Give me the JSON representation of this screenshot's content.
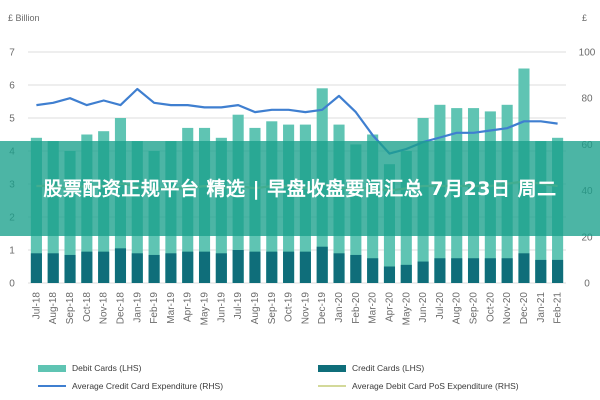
{
  "overlay_title": "股票配资正规平台 精选 | 早盘收盘要闻汇总 7月23日 周二",
  "chart_data": {
    "type": "bar",
    "unit_left": "£ Billion",
    "unit_right": "£",
    "left_axis": {
      "min": 0,
      "max": 7,
      "ticks": [
        0,
        1,
        2,
        3,
        4,
        5,
        6,
        7
      ]
    },
    "right_axis": {
      "min": 0,
      "max": 100,
      "ticks": [
        0,
        20,
        40,
        60,
        80,
        100
      ]
    },
    "categories": [
      "Jul-18",
      "Aug-18",
      "Sep-18",
      "Oct-18",
      "Nov-18",
      "Dec-18",
      "Jan-19",
      "Feb-19",
      "Mar-19",
      "Apr-19",
      "May-19",
      "Jun-19",
      "Jul-19",
      "Aug-19",
      "Sep-19",
      "Oct-19",
      "Nov-19",
      "Dec-19",
      "Jan-20",
      "Feb-20",
      "Mar-20",
      "Apr-20",
      "May-20",
      "Jun-20",
      "Jul-20",
      "Aug-20",
      "Sep-20",
      "Oct-20",
      "Nov-20",
      "Dec-20",
      "Jan-21",
      "Feb-21"
    ],
    "series": [
      {
        "name": "Debit Cards (LHS)",
        "kind": "bar",
        "axis": "left",
        "color": "#5fc4b3",
        "values": [
          4.4,
          4.3,
          4.0,
          4.5,
          4.6,
          5.0,
          4.3,
          4.0,
          4.3,
          4.7,
          4.7,
          4.4,
          5.1,
          4.7,
          4.9,
          4.8,
          4.8,
          5.9,
          4.8,
          4.2,
          4.5,
          3.6,
          4.0,
          5.0,
          5.4,
          5.3,
          5.3,
          5.2,
          5.4,
          6.5,
          4.3,
          4.4
        ]
      },
      {
        "name": "Credit Cards (LHS)",
        "kind": "bar",
        "axis": "left",
        "color": "#0f6e7a",
        "values": [
          0.9,
          0.9,
          0.85,
          0.95,
          0.95,
          1.05,
          0.9,
          0.85,
          0.9,
          0.95,
          0.95,
          0.9,
          1.0,
          0.95,
          0.95,
          0.95,
          0.95,
          1.1,
          0.9,
          0.85,
          0.75,
          0.5,
          0.55,
          0.65,
          0.75,
          0.75,
          0.75,
          0.75,
          0.75,
          0.9,
          0.7,
          0.7
        ]
      },
      {
        "name": "Average Credit Card Expenditure (RHS)",
        "kind": "line",
        "axis": "right",
        "color": "#3f7fd0",
        "values": [
          77,
          78,
          80,
          77,
          79,
          77,
          84,
          78,
          77,
          77,
          76,
          76,
          77,
          74,
          75,
          75,
          74,
          75,
          81,
          74,
          64,
          56,
          58,
          61,
          63,
          65,
          65,
          66,
          67,
          70,
          70,
          69
        ]
      },
      {
        "name": "Average Debit Card PoS Expenditure (RHS)",
        "kind": "line",
        "axis": "right",
        "color": "#d3d99a",
        "values": [
          42,
          42,
          41,
          42,
          42,
          43,
          42,
          41,
          41,
          41,
          42,
          41,
          42,
          41,
          42,
          42,
          41,
          43,
          41,
          41,
          41,
          40,
          41,
          42,
          42,
          42,
          42,
          42,
          43,
          44,
          43,
          42
        ]
      }
    ],
    "legend": [
      {
        "label": "Debit Cards (LHS)",
        "type": "bar",
        "color": "#5fc4b3"
      },
      {
        "label": "Credit Cards (LHS)",
        "type": "bar",
        "color": "#0f6e7a"
      },
      {
        "label": "Average Credit Card Expenditure (RHS)",
        "type": "line",
        "color": "#3f7fd0"
      },
      {
        "label": "Average Debit Card PoS Expenditure (RHS)",
        "type": "line",
        "color": "#d3d99a"
      }
    ],
    "grid": true,
    "legend_position": "bottom"
  }
}
